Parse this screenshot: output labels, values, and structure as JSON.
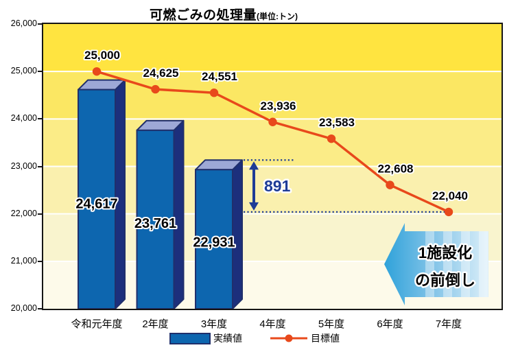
{
  "title": {
    "main": "可燃ごみの処理量",
    "unit": "(単位:トン)"
  },
  "legend": {
    "actual": "実績値",
    "target": "目標値"
  },
  "chart_data": {
    "type": "combo (bar + line)",
    "title": "可燃ごみの処理量",
    "unit_label": "(単位:トン)",
    "categories": [
      "令和元年度",
      "2年度",
      "3年度",
      "4年度",
      "5年度",
      "6年度",
      "7年度"
    ],
    "series": [
      {
        "name": "実績値",
        "type": "bar",
        "values": [
          24617,
          23761,
          22931
        ]
      },
      {
        "name": "目標値",
        "type": "line",
        "values": [
          25000,
          24625,
          24551,
          23936,
          23583,
          22608,
          22040
        ]
      }
    ],
    "ylim": [
      20000,
      26000
    ],
    "yticks": [
      26000,
      25000,
      24000,
      23000,
      22000,
      21000,
      20000
    ],
    "grid": true,
    "legend_position": "bottom",
    "annotations": {
      "difference_label": "891",
      "difference_between": [
        22931,
        22040
      ],
      "big_arrow_text": [
        "1施設化",
        "の前倒し"
      ]
    }
  },
  "colors": {
    "bar_front": "#0d66af",
    "bar_top": "#9da8d6",
    "bar_side": "#1c2f7c",
    "bar_outline": "#202f6b",
    "target_line": "#e8491b",
    "annotation_blue": "#1e3c96",
    "band_yellows": [
      "#ffe440",
      "#fbe763",
      "#fbec87",
      "#faf0ae",
      "#f9f4ce",
      "#fdfaea"
    ],
    "big_arrow_blue_start": "#2fa2da",
    "big_arrow_blue_end": "#dceff9"
  }
}
